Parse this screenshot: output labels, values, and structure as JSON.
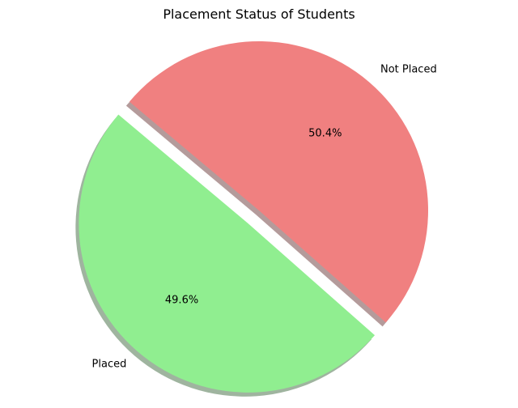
{
  "chart_data": {
    "type": "pie",
    "title": "Placement Status of Students",
    "slices": [
      {
        "label": "Placed",
        "value": 49.6,
        "pct_label": "49.6%",
        "color": "#90ee90",
        "explode": true
      },
      {
        "label": "Not Placed",
        "value": 50.4,
        "pct_label": "50.4%",
        "color": "#f08080",
        "explode": false
      }
    ],
    "start_angle_deg": 140,
    "shadow": true,
    "legend": "none"
  }
}
